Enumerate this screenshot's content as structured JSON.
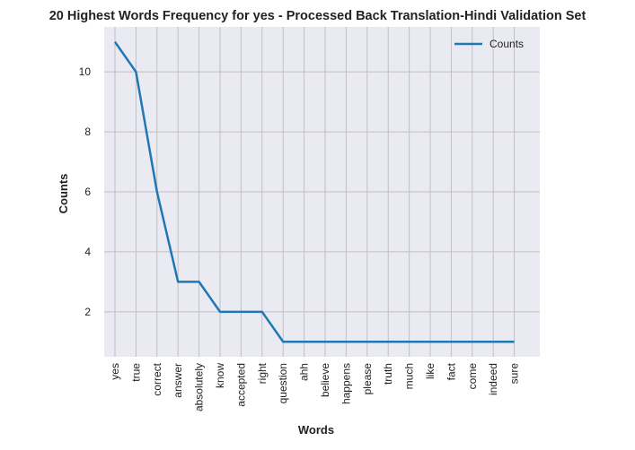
{
  "chart_data": {
    "type": "line",
    "title": "20 Highest Words Frequency for yes - Processed Back Translation-Hindi Validation Set",
    "xlabel": "Words",
    "ylabel": "Counts",
    "categories": [
      "yes",
      "true",
      "correct",
      "answer",
      "absolutely",
      "know",
      "accepted",
      "right",
      "question",
      "ahh",
      "believe",
      "happens",
      "please",
      "truth",
      "much",
      "like",
      "fact",
      "come",
      "indeed",
      "sure"
    ],
    "series": [
      {
        "name": "Counts",
        "values": [
          11,
          10,
          6,
          3,
          3,
          2,
          2,
          2,
          1,
          1,
          1,
          1,
          1,
          1,
          1,
          1,
          1,
          1,
          1,
          1
        ]
      }
    ],
    "ylim": [
      0.5,
      11.5
    ],
    "yticks": [
      2,
      4,
      6,
      8,
      10
    ],
    "grid": true,
    "legend": "top-right",
    "colors": {
      "line": "#1f77b4",
      "background": "#eaeaf2",
      "grid": "#c0c0c0"
    }
  }
}
